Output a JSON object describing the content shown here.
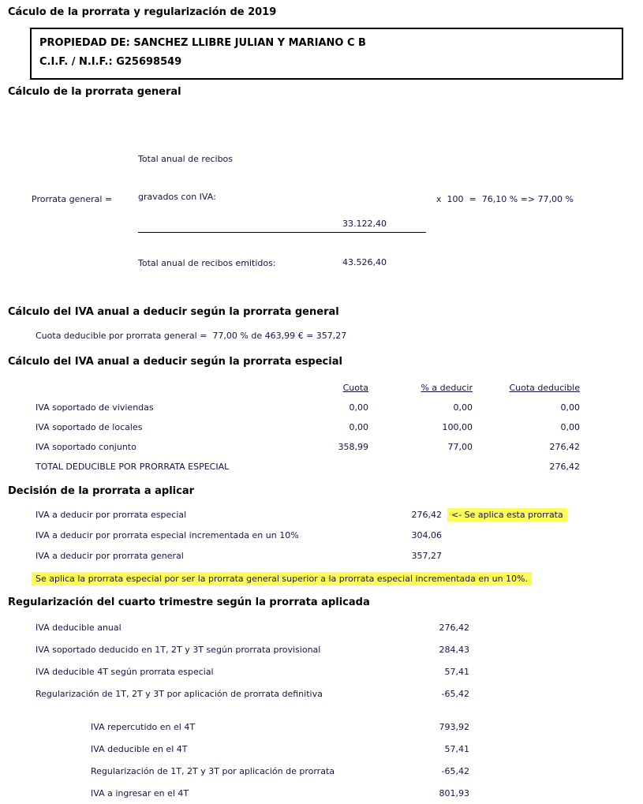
{
  "page": {
    "title": "Cáculo de la prorrata y regularización de 2019"
  },
  "owner_box": {
    "line1": "PROPIEDAD DE: SANCHEZ LLIBRE JULIAN Y MARIANO C B",
    "line2": "C.I.F. / N.I.F.: G25698549"
  },
  "prorrata_general": {
    "heading": "Cálculo de la prorrata general",
    "formula_label": "Prorrata general =",
    "numerator_label_line1": "Total anual de recibos",
    "numerator_label_line2": "gravados con IVA:",
    "numerator_value": "33.122,40",
    "denominator_label": "Total anual de recibos emitidos:",
    "denominator_value": "43.526,40",
    "result": "x  100  =  76,10 % => 77,00 %"
  },
  "iva_general": {
    "heading": "Cálculo del IVA anual a deducir según la prorrata general",
    "line": "Cuota deducible por prorrata general =  77,00 % de 463,99 € = 357,27"
  },
  "iva_especial": {
    "heading": "Cálculo del IVA anual a deducir según la prorrata especial",
    "columns": {
      "cuota": "Cuota",
      "pct": "% a deducir",
      "deducible": "Cuota deducible"
    },
    "rows": [
      {
        "label": "IVA soportado de viviendas",
        "cuota": "0,00",
        "pct": "0,00",
        "deducible": "0,00"
      },
      {
        "label": "IVA soportado de locales",
        "cuota": "0,00",
        "pct": "100,00",
        "deducible": "0,00"
      },
      {
        "label": "IVA soportado conjunto",
        "cuota": "358,99",
        "pct": "77,00",
        "deducible": "276,42"
      }
    ],
    "total_label": "TOTAL DEDUCIBLE POR PRORRATA ESPECIAL",
    "total_value": "276,42"
  },
  "decision": {
    "heading": "Decisión de la prorrata a aplicar",
    "rows": [
      {
        "label": "IVA a deducir por prorrata especial",
        "value": "276,42",
        "note": "<- Se aplica esta prorrata"
      },
      {
        "label": "IVA a deducir por prorrata especial incrementada en un 10%",
        "value": "304,06",
        "note": ""
      },
      {
        "label": "IVA a deducir por prorrata general",
        "value": "357,27",
        "note": ""
      }
    ],
    "conclusion": "Se aplica la prorrata especial por ser la prorrata general superior a la prorrata especial incrementada en un 10%."
  },
  "regularizacion": {
    "heading": "Regularización del cuarto trimestre según la prorrata aplicada",
    "rows": [
      {
        "label": "IVA deducible anual",
        "value": "276,42"
      },
      {
        "label": "IVA soportado deducido en 1T, 2T y 3T según prorrata provisional",
        "value": "284,43"
      },
      {
        "label": "IVA deducible 4T según prorrata especial",
        "value": "57,41"
      },
      {
        "label": "Regularización de 1T, 2T y 3T por aplicación de prorrata definitiva",
        "value": "-65,42"
      }
    ],
    "rows_4t": [
      {
        "label": "IVA repercutido en el 4T",
        "value": "793,92"
      },
      {
        "label": "IVA deducible en el 4T",
        "value": "57,41"
      },
      {
        "label": "Regularización de 1T, 2T y 3T por aplicación de prorrata",
        "value": "-65,42"
      },
      {
        "label": "IVA a ingresar en el 4T",
        "value": "801,93"
      }
    ]
  },
  "colors": {
    "highlight": "#fcfc59",
    "body_text": "#131347",
    "heading_text": "#000000"
  }
}
